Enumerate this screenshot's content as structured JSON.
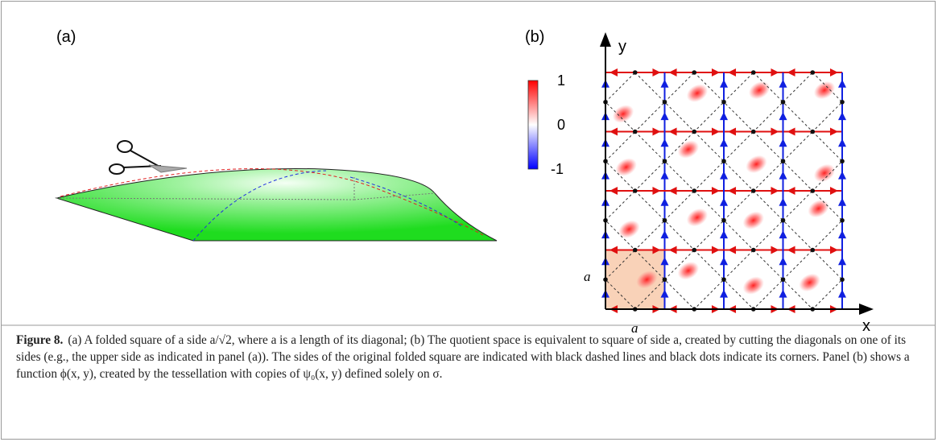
{
  "figure": {
    "panel_a": {
      "label": "(a)"
    },
    "panel_b": {
      "label": "(b)",
      "colorbar_ticks": [
        "1",
        "0",
        "-1"
      ],
      "axis_x": "x",
      "axis_y": "y",
      "side_x": "a",
      "side_y": "a"
    }
  },
  "caption": {
    "label": "Figure 8.",
    "text": "(a) A folded square of a side a/√2, where a is a length of its diagonal; (b) The quotient space is equivalent to square of side a, created by cutting the diagonals on one of its sides (e.g., the upper side as indicated in panel (a)). The sides of the original folded square are indicated with black dashed lines and black dots indicate its corners. Panel (b) shows a function ϕ(x, y), created by the tessellation with copies of ψ₀(x, y) defined solely on σ."
  }
}
